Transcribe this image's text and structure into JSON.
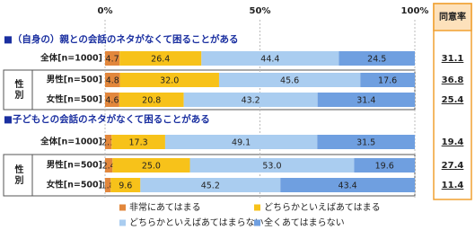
{
  "chart_data": {
    "type": "stacked-bar",
    "xlim": [
      0,
      100
    ],
    "xticks": [
      {
        "value": 0,
        "label": "0%"
      },
      {
        "value": 50,
        "label": "50%"
      },
      {
        "value": 100,
        "label": "100%"
      }
    ],
    "grid": true,
    "sections": [
      "■（自身の）親との会話のネタがなくて困ることがある",
      "■子どもとの会話のネタがなくて困ることがある"
    ],
    "group_labels": [
      "性別",
      "性別"
    ],
    "categories": [
      "全体[n=1000]",
      "男性[n=500]",
      "女性[n=500]",
      "全体[n=1000]",
      "男性[n=500]",
      "女性[n=500]"
    ],
    "series": [
      {
        "name": "非常にあてはまる",
        "color": "#e2873c",
        "values": [
          4.7,
          4.8,
          4.6,
          2.1,
          2.4,
          1.8
        ],
        "value_labels": [
          "4.7",
          "4.8",
          "4.6",
          "2.1",
          "2.4",
          "1.8"
        ]
      },
      {
        "name": "どちらかといえばあてはまる",
        "color": "#f7c21a",
        "values": [
          26.4,
          32.0,
          20.8,
          17.3,
          25.0,
          9.6
        ],
        "value_labels": [
          "26.4",
          "32.0",
          "20.8",
          "17.3",
          "25.0",
          "9.6"
        ]
      },
      {
        "name": "どちらかといえばあてはまらない",
        "color": "#aacdf0",
        "values": [
          44.4,
          45.6,
          43.2,
          49.1,
          53.0,
          45.2
        ],
        "value_labels": [
          "44.4",
          "45.6",
          "43.2",
          "49.1",
          "53.0",
          "45.2"
        ]
      },
      {
        "name": "全くあてはまらない",
        "color": "#6f9fe0",
        "values": [
          24.5,
          17.6,
          31.4,
          31.5,
          19.6,
          43.4
        ],
        "value_labels": [
          "24.5",
          "17.6",
          "31.4",
          "31.5",
          "19.6",
          "43.4"
        ]
      }
    ],
    "agree_rate": {
      "label": "同意率",
      "values": [
        31.1,
        36.8,
        25.4,
        19.4,
        27.4,
        11.4
      ]
    }
  }
}
